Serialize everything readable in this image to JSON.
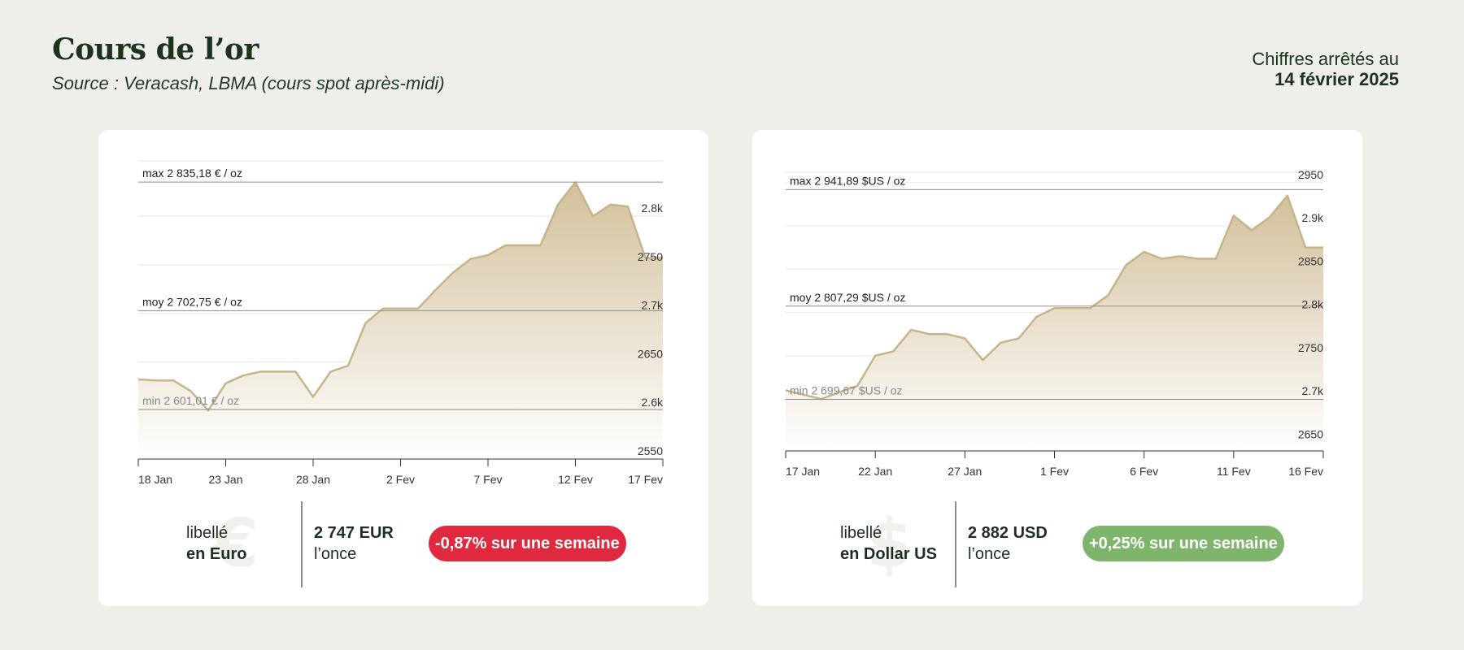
{
  "header": {
    "title": "Cours de l’or",
    "subtitle": "Source : Veracash, LBMA (cours spot après-midi)",
    "date_prefix": "Chiffres arrêtés au",
    "date": "14 février 2025"
  },
  "colors": {
    "background": "#eeefea",
    "area_line": "#c8b48a",
    "area_fill_top": "#d2c09b",
    "negative_badge": "#e0283e",
    "positive_badge": "#7fb56a"
  },
  "cards": [
    {
      "currency_icon": "euro-sign",
      "symbol": "€",
      "label_line1": "libellé",
      "label_line2": "en Euro",
      "price_value": "2 747 EUR",
      "price_unit": "l’once",
      "change": "-0,87% sur une semaine",
      "change_color": "#e0283e"
    },
    {
      "currency_icon": "dollar-sign",
      "symbol": "$",
      "label_line1": "libellé",
      "label_line2": "en Dollar US",
      "price_value": "2 882  USD",
      "price_unit": "l’once",
      "change": "+0,25% sur une semaine",
      "change_color": "#7fb56a"
    }
  ],
  "chart_data": [
    {
      "type": "area",
      "currency": "EUR",
      "x_start": "2025-01-18",
      "x_end": "2025-02-17",
      "x_ticks": [
        "18 Jan",
        "23 Jan",
        "28 Jan",
        "2 Fev",
        "7 Fev",
        "12 Fev",
        "17 Fev"
      ],
      "ylim": [
        2550,
        2857
      ],
      "y_ticks": [
        {
          "value": 2550,
          "label": "2550"
        },
        {
          "value": 2600,
          "label": "2.6k"
        },
        {
          "value": 2650,
          "label": "2650"
        },
        {
          "value": 2700,
          "label": "2.7k"
        },
        {
          "value": 2750,
          "label": "2750"
        },
        {
          "value": 2800,
          "label": "2.8k"
        }
      ],
      "reference_lines": [
        {
          "value": 2835.18,
          "label": "max 2 835,18 € / oz"
        },
        {
          "value": 2702.75,
          "label": "moy 2 702,75 € / oz"
        },
        {
          "value": 2601.01,
          "label": "min 2 601,01 € / oz"
        }
      ],
      "series": [
        {
          "x": [
            "2025-01-18",
            "2025-01-19",
            "2025-01-20",
            "2025-01-21",
            "2025-01-22",
            "2025-01-23",
            "2025-01-24",
            "2025-01-25",
            "2025-01-26",
            "2025-01-27",
            "2025-01-28",
            "2025-01-29",
            "2025-01-30",
            "2025-01-31",
            "2025-02-01",
            "2025-02-02",
            "2025-02-03",
            "2025-02-04",
            "2025-02-05",
            "2025-02-06",
            "2025-02-07",
            "2025-02-08",
            "2025-02-09",
            "2025-02-10",
            "2025-02-11",
            "2025-02-12",
            "2025-02-13",
            "2025-02-14",
            "2025-02-15",
            "2025-02-16",
            "2025-02-17"
          ],
          "y": [
            2632,
            2631,
            2631,
            2620,
            2600,
            2628,
            2636,
            2640,
            2640,
            2640,
            2614,
            2640,
            2646,
            2690,
            2705,
            2705,
            2705,
            2724,
            2742,
            2756,
            2760,
            2770,
            2770,
            2770,
            2812,
            2835,
            2800,
            2812,
            2810,
            2757,
            2757
          ]
        }
      ]
    },
    {
      "type": "area",
      "currency": "USD",
      "x_start": "2025-01-17",
      "x_end": "2025-02-16",
      "x_ticks": [
        "17 Jan",
        "22 Jan",
        "27 Jan",
        "1 Fev",
        "6 Fev",
        "11 Fev",
        "16 Fev"
      ],
      "ylim": [
        2640,
        2962
      ],
      "y_ticks": [
        {
          "value": 2650,
          "label": "2650"
        },
        {
          "value": 2700,
          "label": "2.7k"
        },
        {
          "value": 2750,
          "label": "2750"
        },
        {
          "value": 2800,
          "label": "2.8k"
        },
        {
          "value": 2850,
          "label": "2850"
        },
        {
          "value": 2900,
          "label": "2.9k"
        },
        {
          "value": 2950,
          "label": "2950"
        }
      ],
      "reference_lines": [
        {
          "value": 2941.89,
          "label": "max 2 941,89 $US / oz"
        },
        {
          "value": 2807.29,
          "label": "moy 2 807,29 $US / oz"
        },
        {
          "value": 2699.67,
          "label": "min 2 699,67 $US / oz"
        }
      ],
      "series": [
        {
          "x": [
            "2025-01-17",
            "2025-01-18",
            "2025-01-19",
            "2025-01-20",
            "2025-01-21",
            "2025-01-22",
            "2025-01-23",
            "2025-01-24",
            "2025-01-25",
            "2025-01-26",
            "2025-01-27",
            "2025-01-28",
            "2025-01-29",
            "2025-01-30",
            "2025-01-31",
            "2025-02-01",
            "2025-02-02",
            "2025-02-03",
            "2025-02-04",
            "2025-02-05",
            "2025-02-06",
            "2025-02-07",
            "2025-02-08",
            "2025-02-09",
            "2025-02-10",
            "2025-02-11",
            "2025-02-12",
            "2025-02-13",
            "2025-02-14",
            "2025-02-15",
            "2025-02-16"
          ],
          "y": [
            2710,
            2705,
            2700,
            2708,
            2715,
            2750,
            2755,
            2780,
            2775,
            2775,
            2770,
            2745,
            2765,
            2770,
            2795,
            2805,
            2805,
            2805,
            2820,
            2855,
            2870,
            2862,
            2865,
            2862,
            2862,
            2912,
            2895,
            2910,
            2935,
            2875,
            2875
          ]
        }
      ]
    }
  ]
}
